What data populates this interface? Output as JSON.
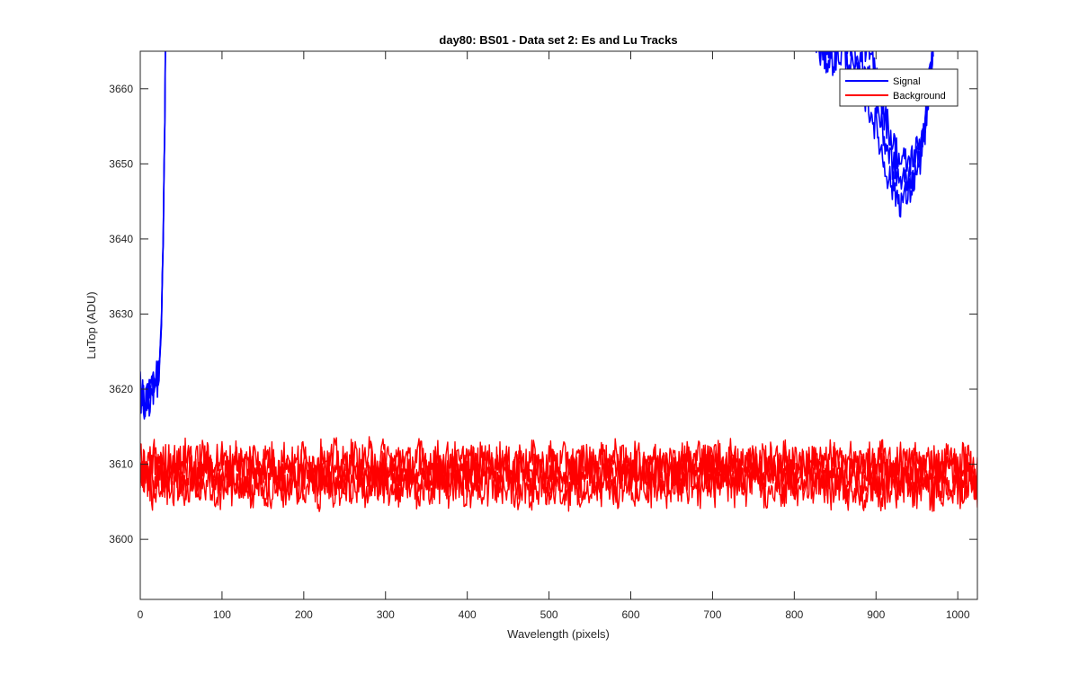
{
  "chart_data": {
    "type": "line",
    "title": "day80: BS01 - Data set 2: Es and Lu Tracks",
    "xlabel": "Wavelength (pixels)",
    "ylabel": "LuTop (ADU)",
    "xlim": [
      0,
      1024
    ],
    "ylim": [
      3592,
      3665
    ],
    "xticks": [
      0,
      100,
      200,
      300,
      400,
      500,
      600,
      700,
      800,
      900,
      1000
    ],
    "yticks": [
      3600,
      3610,
      3620,
      3630,
      3640,
      3650,
      3660
    ],
    "grid": false,
    "legend_position": "top-right",
    "series": [
      {
        "name": "Signal",
        "color": "#0000ff",
        "tracks": 3,
        "x": [
          0,
          5,
          10,
          15,
          20,
          24,
          26,
          28,
          30,
          31,
          820,
          830,
          840,
          850,
          860,
          870,
          880,
          890,
          900,
          910,
          920,
          930,
          940,
          950,
          955,
          960,
          965,
          970
        ],
        "y": [
          3620,
          3618,
          3619,
          3620,
          3621,
          3624,
          3629,
          3640,
          3656,
          3670,
          3670,
          3665,
          3664,
          3664,
          3665,
          3663,
          3661,
          3658,
          3655,
          3650,
          3647,
          3645,
          3646,
          3649,
          3651,
          3654,
          3660,
          3666
        ]
      },
      {
        "name": "Background",
        "color": "#ff0000",
        "tracks": 4,
        "x": [
          0,
          100,
          200,
          300,
          400,
          500,
          600,
          700,
          800,
          900,
          1000,
          1024
        ],
        "y": [
          3608.5,
          3608.6,
          3608.4,
          3608.7,
          3608.5,
          3608.3,
          3608.6,
          3608.8,
          3608.5,
          3608.4,
          3608.2,
          3608.2
        ]
      }
    ]
  }
}
